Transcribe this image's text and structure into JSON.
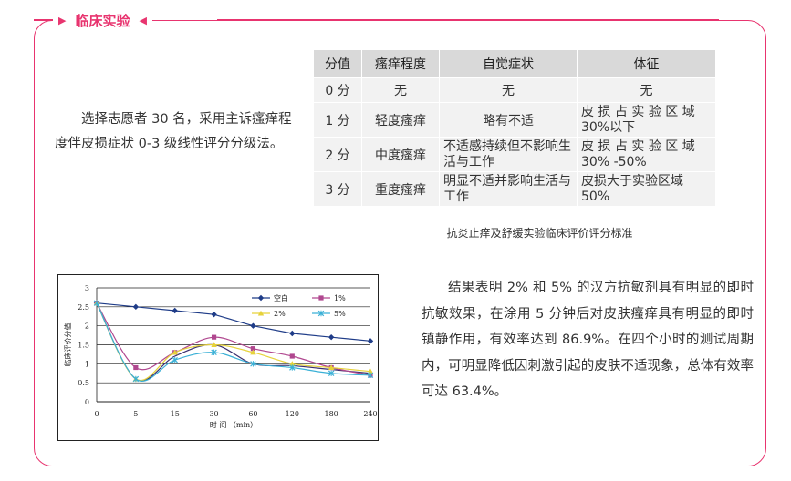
{
  "section": {
    "title": "临床实验"
  },
  "intro": {
    "text": "选择志愿者 30 名，采用主诉瘙痒程度伴皮损症状 0-3 级线性评分分级法。"
  },
  "score_table": {
    "headers": [
      "分值",
      "瘙痒程度",
      "自觉症状",
      "体征"
    ],
    "rows": [
      [
        "0 分",
        "无",
        "无",
        "无"
      ],
      [
        "1 分",
        "轻度瘙痒",
        "略有不适",
        "皮 损 占 实 验 区 域 30%以下"
      ],
      [
        "2 分",
        "中度瘙痒",
        "不适感持续但不影响生活与工作",
        "皮 损 占 实 验 区 域 30% -50%"
      ],
      [
        "3 分",
        "重度瘙痒",
        "明显不适并影响生活与工作",
        "皮损大于实验区域 50%"
      ]
    ],
    "caption": "抗炎止痒及舒缓实验临床评价评分标准"
  },
  "result": {
    "text": "结果表明 2% 和 5% 的汉方抗敏剂具有明显的即时抗敏效果，在涂用 5 分钟后对皮肤瘙痒具有明显的即时镇静作用，有效率达到 86.9%。在四个小时的测试周期内，可明显降低因刺激引起的皮肤不适现象，总体有效率可达 63.4%。"
  },
  "colors": {
    "accent": "#e8346f"
  },
  "chart_data": {
    "type": "line",
    "categories": [
      "0",
      "5",
      "15",
      "30",
      "60",
      "120",
      "180",
      "240"
    ],
    "yticks": [
      "0",
      "0.5",
      "1",
      "1.5",
      "2",
      "2.5",
      "3"
    ],
    "ylim": [
      0,
      3
    ],
    "xlabel": "时 间 （min）",
    "ylabel": "临床评价分值",
    "grid": true,
    "legend_position": "top-right",
    "series": [
      {
        "name": "空白",
        "color": "#1f3c88",
        "marker": "diamond",
        "values": [
          2.6,
          2.5,
          2.4,
          2.3,
          2.0,
          1.8,
          1.7,
          1.6
        ]
      },
      {
        "name": "1%",
        "color": "#b0478f",
        "marker": "square",
        "values": [
          2.6,
          0.9,
          1.3,
          1.7,
          1.4,
          1.2,
          0.9,
          0.7
        ]
      },
      {
        "name": "2%",
        "color": "#e6d23a",
        "marker": "triangle",
        "values": [
          2.6,
          0.6,
          1.3,
          1.5,
          1.3,
          1.0,
          0.9,
          0.8
        ]
      },
      {
        "name": "5%",
        "color": "#3ab0d6",
        "marker": "x",
        "values": [
          2.6,
          0.6,
          1.1,
          1.3,
          1.0,
          0.9,
          0.75,
          0.7
        ]
      }
    ],
    "extra_curves": [
      {
        "color": "#3a2f6e",
        "values": [
          2.6,
          0.6,
          1.2,
          1.5,
          1.0,
          0.95,
          0.85,
          0.75
        ]
      }
    ]
  }
}
